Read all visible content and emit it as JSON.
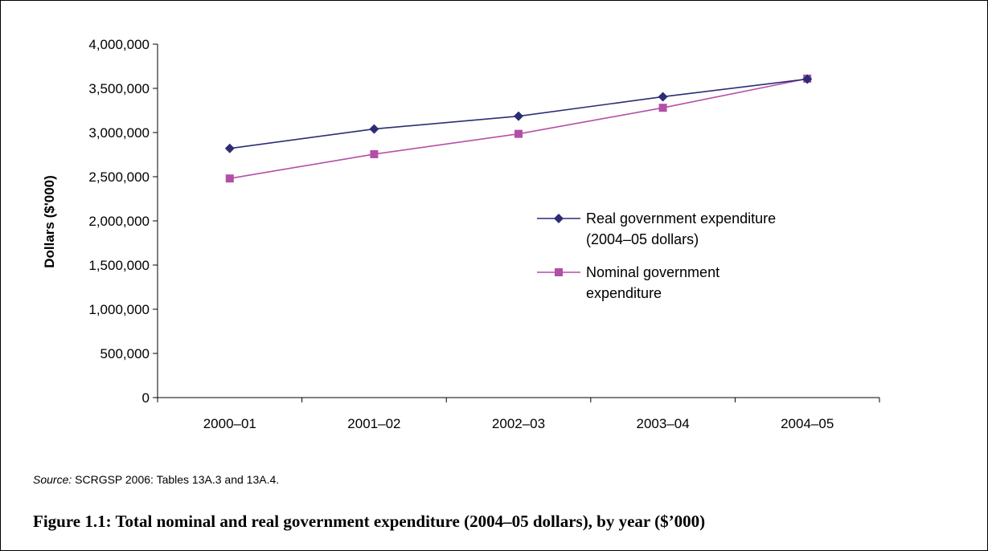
{
  "chart_data": {
    "type": "line",
    "categories": [
      "2000–01",
      "2001–02",
      "2002–03",
      "2003–04",
      "2004–05"
    ],
    "series": [
      {
        "name_lines": [
          "Real government expenditure",
          "(2004–05 dollars)"
        ],
        "color": "#2B2D74",
        "marker": "diamond",
        "values": [
          2820000,
          3040000,
          3185000,
          3405000,
          3605000
        ]
      },
      {
        "name_lines": [
          "Nominal government",
          "expenditure"
        ],
        "color": "#B44FA6",
        "marker": "square",
        "values": [
          2480000,
          2755000,
          2985000,
          3280000,
          3610000
        ]
      }
    ],
    "ylabel": "Dollars ($'000)",
    "ylim": [
      0,
      4000000
    ],
    "yticks": [
      "0",
      "500,000",
      "1,000,000",
      "1,500,000",
      "2,000,000",
      "2,500,000",
      "3,000,000",
      "3,500,000",
      "4,000,000"
    ],
    "ytick_values": [
      0,
      500000,
      1000000,
      1500000,
      2000000,
      2500000,
      3000000,
      3500000,
      4000000
    ],
    "grid": false,
    "legend_position": "center-right"
  },
  "source": {
    "label": "Source:",
    "text": " SCRGSP 2006: Tables 13A.3 and 13A.4."
  },
  "caption": "Figure 1.1: Total nominal and real government expenditure (2004–05 dollars), by year ($’000)"
}
